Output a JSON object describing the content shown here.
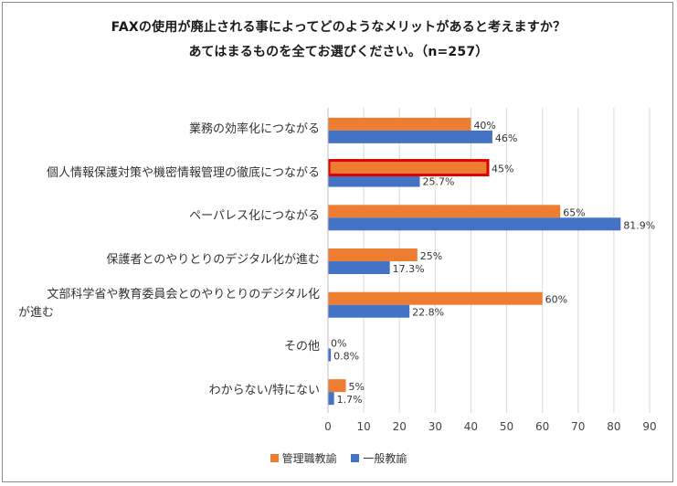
{
  "chart_data": {
    "type": "bar",
    "orientation": "horizontal",
    "title_line1": "FAXの使用が廃止される事によってどのようなメリットがあると考えますか？",
    "title_line2": "あてはまるものを全てお選びください。（n=257）",
    "categories": [
      "業務の効率化につながる",
      "個人情報保護対策や機密情報管理の徹底につながる",
      "ペーパレス化につながる",
      "保護者とのやりとりのデジタル化が進む",
      "文部科学省や教育委員会とのやりとりのデジタル化が進む",
      "その他",
      "わからない/特にない"
    ],
    "category_lines": [
      [
        "業務の効率化につながる"
      ],
      [
        "個人情報保護対策や機密情報管理の徹底につながる"
      ],
      [
        "ペーパレス化につながる"
      ],
      [
        "保護者とのやりとりのデジタル化が進む"
      ],
      [
        "文部科学省や教育委員会とのやりとりのデジタル化",
        "が進む"
      ],
      [
        "その他"
      ],
      [
        "わからない/特にない"
      ]
    ],
    "series": [
      {
        "name": "管理職教諭",
        "color": "#ed7d31",
        "values": [
          40,
          45,
          65,
          25,
          60,
          0,
          5
        ],
        "labels": [
          "40%",
          "45%",
          "65%",
          "25%",
          "60%",
          "0%",
          "5%"
        ]
      },
      {
        "name": "一般教諭",
        "color": "#4472c4",
        "values": [
          46,
          25.7,
          81.9,
          17.3,
          22.8,
          0.8,
          1.7
        ],
        "labels": [
          "46%",
          "25.7%",
          "81.9%",
          "17.3%",
          "22.8%",
          "0.8%",
          "1.7%"
        ]
      }
    ],
    "xlim": [
      0,
      90
    ],
    "xticks": [
      0,
      10,
      20,
      30,
      40,
      50,
      60,
      70,
      80,
      90
    ],
    "xtick_labels": [
      "0",
      "10",
      "20",
      "30",
      "40",
      "50",
      "60",
      "70",
      "80",
      "90"
    ],
    "gridlines": true,
    "legend_position": "bottom",
    "highlight": {
      "category_index": 1,
      "series_index": 0,
      "color": "#e00000"
    }
  }
}
